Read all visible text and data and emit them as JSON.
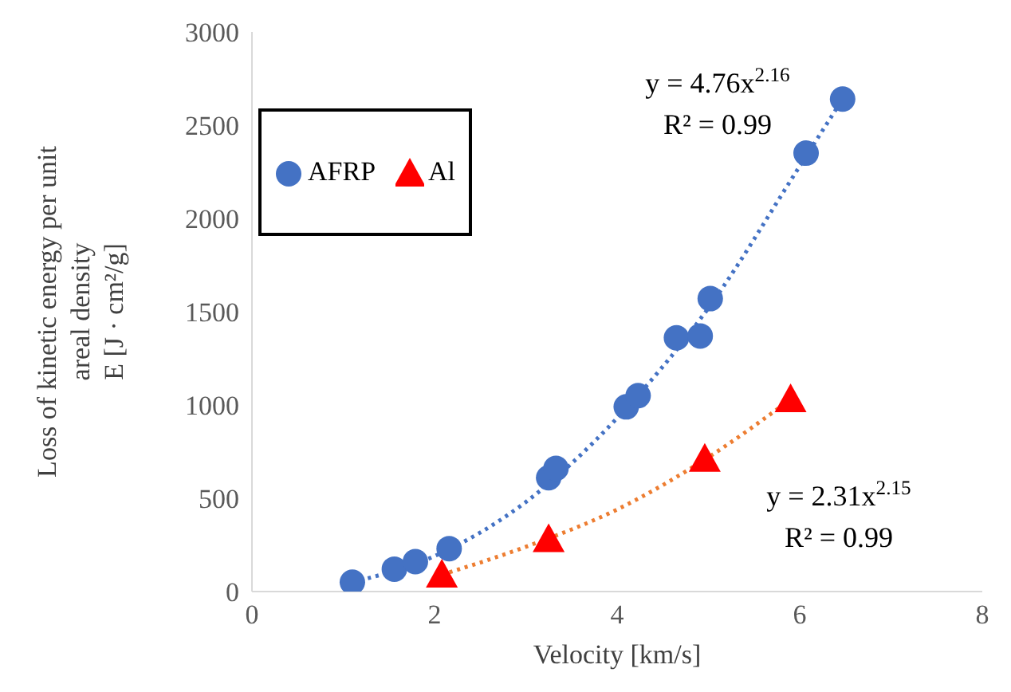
{
  "chart_data": {
    "type": "scatter",
    "xlabel": "Velocity [km/s]",
    "ylabel": "Loss of kinetic energy per unit areal density\nE [J · cm²/g]",
    "xlim": [
      0,
      8
    ],
    "xticks": [
      0,
      2,
      4,
      6,
      8
    ],
    "ylim": [
      0,
      3000
    ],
    "yticks": [
      0,
      500,
      1000,
      1500,
      2000,
      2500,
      3000
    ],
    "legend": "top left",
    "series": [
      {
        "name": "AFRP",
        "color": "#4472c4",
        "marker": "circle",
        "x": [
          1.1,
          1.56,
          1.79,
          2.16,
          3.25,
          3.33,
          4.1,
          4.23,
          4.65,
          4.91,
          5.02,
          6.07,
          6.47
        ],
        "values": [
          50,
          120,
          160,
          230,
          610,
          660,
          990,
          1050,
          1360,
          1370,
          1570,
          2350,
          2640
        ]
      },
      {
        "name": "Al",
        "color": "#ff0000",
        "marker": "triangle",
        "x": [
          2.08,
          3.25,
          4.96,
          5.9
        ],
        "values": [
          90,
          280,
          710,
          1030
        ]
      },
      {
        "type": "line",
        "color": "#4472c4",
        "line_style": "dotted",
        "x": [
          1.1,
          2,
          3,
          4,
          5,
          6,
          6.47
        ],
        "values": [
          50,
          190,
          480,
          930,
          1520,
          2280,
          2640
        ]
      },
      {
        "type": "line",
        "color": "#ed7d31",
        "line_style": "dotted",
        "x": [
          2.08,
          3,
          4,
          5,
          5.9
        ],
        "values": [
          90,
          240,
          440,
          720,
          1030
        ]
      }
    ],
    "annotations": [
      "y = 4.76x$^{2.16}$",
      "R² = 0.99",
      "y = 2.31x$^{2.15}$",
      "R² = 0.99"
    ]
  }
}
